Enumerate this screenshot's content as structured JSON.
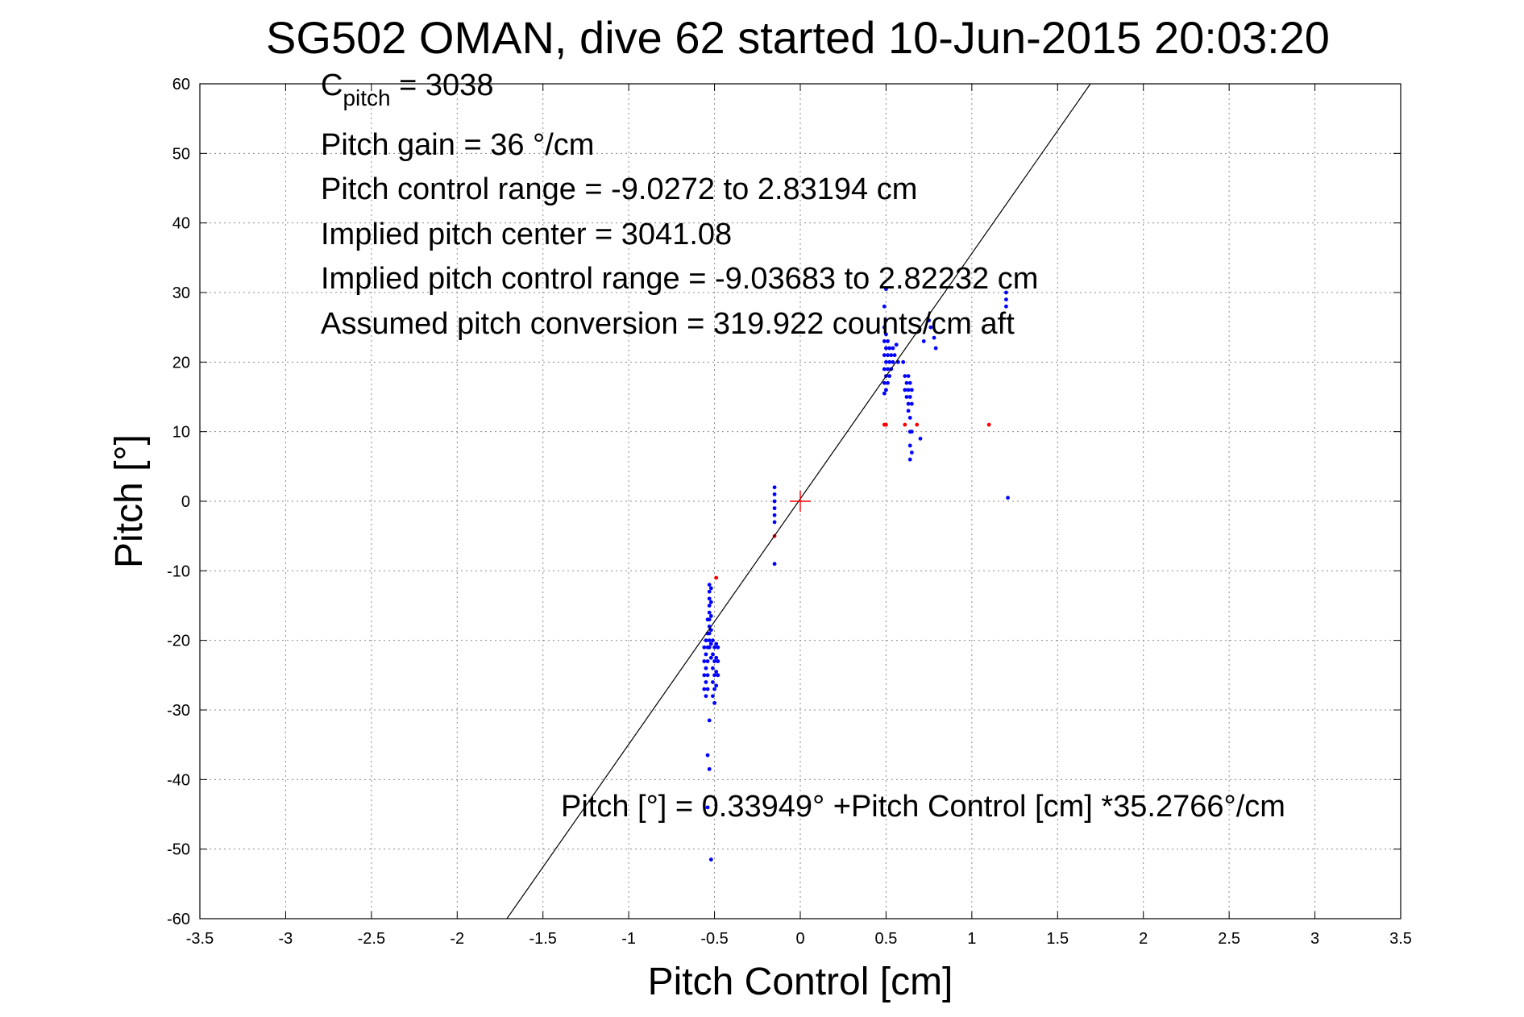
{
  "chart_data": {
    "type": "scatter",
    "title": "SG502 OMAN, dive 62 started 10-Jun-2015 20:03:20",
    "xlabel": "Pitch Control [cm]",
    "ylabel": "Pitch [°]",
    "xlim": [
      -3.5,
      3.5
    ],
    "ylim": [
      -60,
      60
    ],
    "grid": true,
    "x_ticks": [
      "-3.5",
      "-3",
      "-2.5",
      "-2",
      "-1.5",
      "-1",
      "-0.5",
      "0",
      "0.5",
      "1",
      "1.5",
      "2",
      "2.5",
      "3",
      "3.5"
    ],
    "y_ticks": [
      "60",
      "50",
      "40",
      "30",
      "20",
      "10",
      "0",
      "-10",
      "-20",
      "-30",
      "-40",
      "-50",
      "-60"
    ],
    "annotations": {
      "c_pitch": {
        "base": "C",
        "sub": "pitch",
        "rest": " = 3038"
      },
      "pitch_gain": "Pitch gain = 36 °/cm",
      "control_range": "Pitch control range = -9.0272 to 2.83194 cm",
      "implied_center": "Implied pitch center = 3041.08",
      "implied_range": "Implied pitch control range = -9.03683 to 2.82232 cm",
      "conversion": "Assumed pitch conversion = 319.922 counts/cm aft",
      "fit_equation": "Pitch [°] = 0.33949° +Pitch Control [cm] *35.2766°/cm"
    },
    "fit_line": {
      "intercept": 0.33949,
      "slope": 35.2766
    },
    "center_marker": {
      "x": 0,
      "y": 0,
      "color": "#ff0000"
    },
    "series": [
      {
        "color": "#0000ff",
        "points": [
          [
            -0.53,
            -12
          ],
          [
            -0.53,
            -13
          ],
          [
            -0.53,
            -14
          ],
          [
            -0.53,
            -15
          ],
          [
            -0.53,
            -16
          ],
          [
            -0.53,
            -17
          ],
          [
            -0.53,
            -18
          ],
          [
            -0.53,
            -19
          ],
          [
            -0.53,
            -20
          ],
          [
            -0.53,
            -21
          ],
          [
            -0.52,
            -12.5
          ],
          [
            -0.52,
            -14.5
          ],
          [
            -0.52,
            -16.5
          ],
          [
            -0.52,
            -18.5
          ],
          [
            -0.52,
            -20.5
          ],
          [
            -0.52,
            -22.5
          ],
          [
            -0.54,
            -17
          ],
          [
            -0.54,
            -19
          ],
          [
            -0.54,
            -21
          ],
          [
            -0.54,
            -23
          ],
          [
            -0.54,
            -25
          ],
          [
            -0.54,
            -27
          ],
          [
            -0.55,
            -20
          ],
          [
            -0.55,
            -22
          ],
          [
            -0.55,
            -24
          ],
          [
            -0.55,
            -26
          ],
          [
            -0.55,
            -28
          ],
          [
            -0.56,
            -21
          ],
          [
            -0.56,
            -23
          ],
          [
            -0.56,
            -25
          ],
          [
            -0.56,
            -27
          ],
          [
            -0.51,
            -20
          ],
          [
            -0.51,
            -22
          ],
          [
            -0.51,
            -24
          ],
          [
            -0.51,
            -26
          ],
          [
            -0.51,
            -28
          ],
          [
            -0.5,
            -21
          ],
          [
            -0.5,
            -23
          ],
          [
            -0.5,
            -25
          ],
          [
            -0.5,
            -27
          ],
          [
            -0.49,
            -20.5
          ],
          [
            -0.49,
            -22.5
          ],
          [
            -0.49,
            -24.5
          ],
          [
            -0.49,
            -26.5
          ],
          [
            -0.48,
            -21
          ],
          [
            -0.48,
            -23
          ],
          [
            -0.48,
            -25
          ],
          [
            -0.53,
            -31.5
          ],
          [
            -0.54,
            -36.5
          ],
          [
            -0.53,
            -38.5
          ],
          [
            -0.54,
            -44
          ],
          [
            -0.52,
            -51.5
          ],
          [
            -0.5,
            -29
          ],
          [
            -0.15,
            2
          ],
          [
            -0.15,
            1
          ],
          [
            -0.15,
            0
          ],
          [
            -0.15,
            -1
          ],
          [
            -0.15,
            -2
          ],
          [
            -0.15,
            -3
          ],
          [
            -0.15,
            -9
          ],
          [
            0.49,
            28
          ],
          [
            0.49,
            25
          ],
          [
            0.49,
            23
          ],
          [
            0.49,
            21
          ],
          [
            0.49,
            19
          ],
          [
            0.49,
            17
          ],
          [
            0.49,
            15.5
          ],
          [
            0.5,
            26
          ],
          [
            0.5,
            24
          ],
          [
            0.5,
            22
          ],
          [
            0.5,
            20
          ],
          [
            0.5,
            18
          ],
          [
            0.5,
            16
          ],
          [
            0.5,
            30.5
          ],
          [
            0.51,
            23
          ],
          [
            0.51,
            21
          ],
          [
            0.51,
            19
          ],
          [
            0.51,
            17
          ],
          [
            0.52,
            22
          ],
          [
            0.52,
            20
          ],
          [
            0.52,
            18
          ],
          [
            0.53,
            21
          ],
          [
            0.53,
            19
          ],
          [
            0.54,
            22
          ],
          [
            0.54,
            20
          ],
          [
            0.55,
            21
          ],
          [
            0.56,
            22.5
          ],
          [
            0.57,
            20
          ],
          [
            0.6,
            20
          ],
          [
            0.61,
            18
          ],
          [
            0.61,
            16
          ],
          [
            0.62,
            17
          ],
          [
            0.62,
            15
          ],
          [
            0.63,
            18
          ],
          [
            0.63,
            16
          ],
          [
            0.63,
            14
          ],
          [
            0.63,
            13
          ],
          [
            0.64,
            17
          ],
          [
            0.64,
            15
          ],
          [
            0.64,
            12
          ],
          [
            0.64,
            10
          ],
          [
            0.64,
            8
          ],
          [
            0.64,
            6
          ],
          [
            0.65,
            16
          ],
          [
            0.65,
            14
          ],
          [
            0.65,
            10
          ],
          [
            0.65,
            7
          ],
          [
            0.7,
            9
          ],
          [
            0.72,
            23
          ],
          [
            0.75,
            26
          ],
          [
            0.76,
            25
          ],
          [
            0.78,
            23.5
          ],
          [
            0.79,
            22
          ],
          [
            1.2,
            30
          ],
          [
            1.2,
            29
          ],
          [
            1.2,
            28
          ],
          [
            1.21,
            0.5
          ]
        ]
      },
      {
        "color": "#ff0000",
        "points": [
          [
            -0.49,
            -11
          ],
          [
            -0.15,
            -5
          ],
          [
            0.49,
            11
          ],
          [
            0.5,
            11
          ],
          [
            0.61,
            11
          ],
          [
            0.68,
            11
          ],
          [
            1.1,
            11
          ]
        ]
      }
    ]
  }
}
